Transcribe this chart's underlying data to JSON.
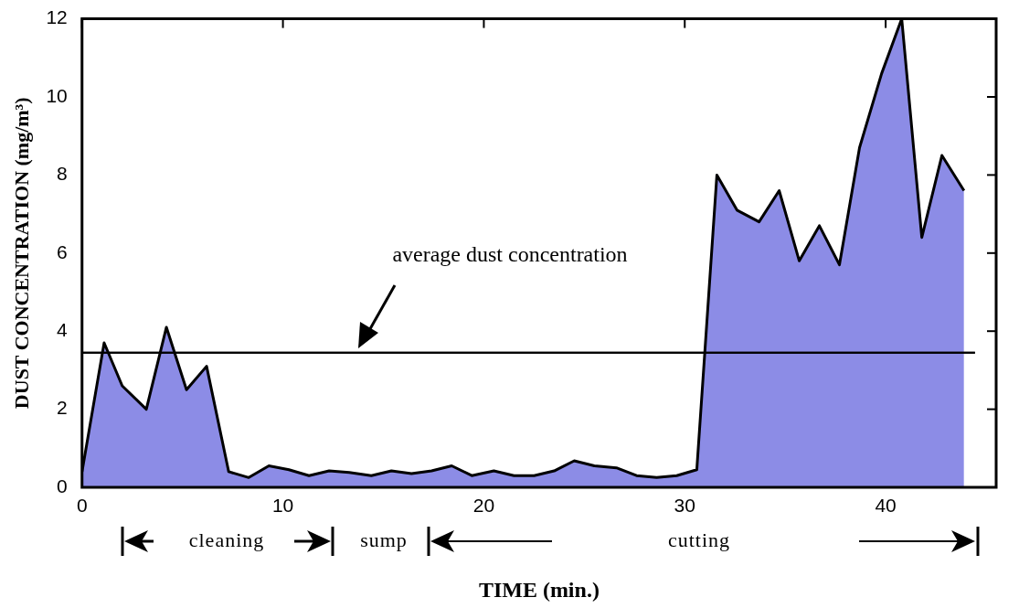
{
  "chart_data": {
    "type": "area",
    "xlabel": "TIME (min.)",
    "ylabel": "DUST CONCENTRATION (mg/m³)",
    "x": [
      0,
      1.1,
      2.0,
      3.2,
      4.2,
      5.2,
      6.2,
      7.3,
      8.3,
      9.3,
      10.3,
      11.3,
      12.3,
      13.3,
      14.4,
      15.4,
      16.4,
      17.4,
      18.4,
      19.4,
      20.5,
      21.5,
      22.5,
      23.5,
      24.5,
      25.5,
      26.6,
      27.6,
      28.6,
      29.6,
      30.6,
      31.6,
      32.6,
      33.7,
      34.7,
      35.7,
      36.7,
      37.7,
      38.7,
      39.8,
      40.8,
      41.8,
      42.8,
      43.9
    ],
    "series": [
      {
        "color": "#8c8ce6",
        "values": [
          0.4,
          3.7,
          2.6,
          2.0,
          4.1,
          2.5,
          3.1,
          0.4,
          0.25,
          0.55,
          0.45,
          0.3,
          0.42,
          0.38,
          0.3,
          0.42,
          0.35,
          0.42,
          0.55,
          0.3,
          0.42,
          0.3,
          0.3,
          0.42,
          0.68,
          0.55,
          0.5,
          0.3,
          0.25,
          0.3,
          0.45,
          8.0,
          7.1,
          6.8,
          7.6,
          5.8,
          6.7,
          5.7,
          8.7,
          10.6,
          12.0,
          6.4,
          8.5,
          7.6
        ]
      }
    ],
    "xlim": [
      0,
      45.5
    ],
    "xticks": [
      0,
      10,
      20,
      30,
      40
    ],
    "ylim": [
      0,
      12
    ],
    "yticks": [
      0,
      2,
      4,
      6,
      8,
      10,
      12
    ],
    "grid": false,
    "legend": false,
    "ref_lines": [
      {
        "axis": "y",
        "value": 3.45,
        "label": "average dust concentration",
        "color": "#000000"
      }
    ],
    "annotations": [
      "cleaning",
      "sump",
      "cutting"
    ]
  }
}
